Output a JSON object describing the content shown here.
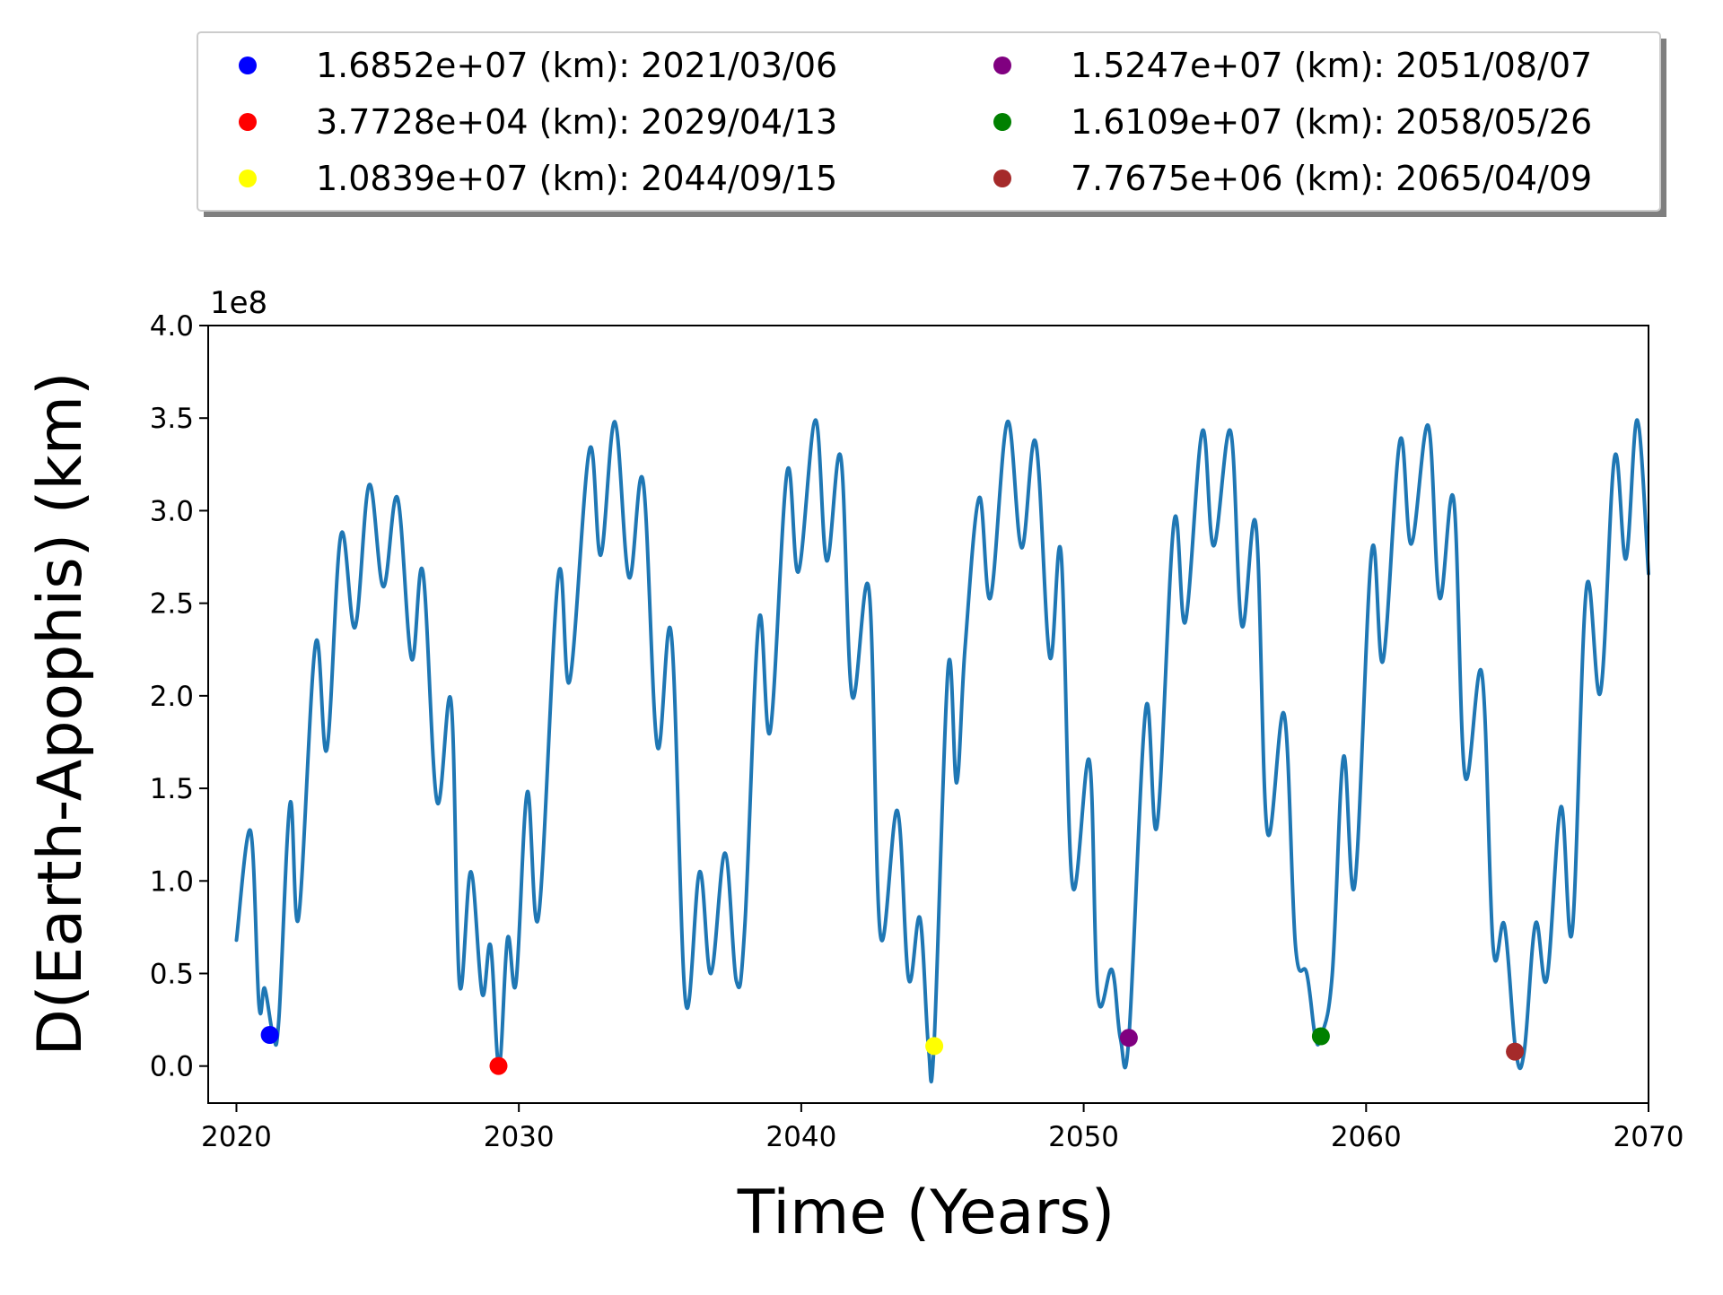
{
  "chart_data": {
    "type": "line",
    "title": "",
    "xlabel": "Time (Years)",
    "ylabel": "D(Earth-Apophis) (km)",
    "y_offset_label": "1e8",
    "xlim": [
      2019,
      2070
    ],
    "ylim": [
      -0.2,
      4.0
    ],
    "y_scale_factor": 100000000,
    "x_ticks": [
      2020,
      2030,
      2040,
      2050,
      2060,
      2070
    ],
    "x_tick_labels": [
      "2020",
      "2030",
      "2040",
      "2050",
      "2060",
      "2070"
    ],
    "y_ticks": [
      0.0,
      0.5,
      1.0,
      1.5,
      2.0,
      2.5,
      3.0,
      3.5,
      4.0
    ],
    "y_tick_labels": [
      "0.0",
      "0.5",
      "1.0",
      "1.5",
      "2.0",
      "2.5",
      "3.0",
      "3.5",
      "4.0"
    ],
    "grid": false,
    "legend_placement": "above-center",
    "line_color": "#1f77b4",
    "series": [
      {
        "x": [
          2020.0,
          2020.5,
          2020.8,
          2021.0,
          2021.3,
          2021.5,
          2021.9,
          2022.2,
          2022.8,
          2023.2,
          2023.7,
          2024.2,
          2024.7,
          2025.2,
          2025.7,
          2026.2,
          2026.6,
          2027.1,
          2027.6,
          2027.9,
          2028.3,
          2028.7,
          2029.0,
          2029.3,
          2029.6,
          2029.9,
          2030.3,
          2030.7,
          2031.4,
          2031.8,
          2032.5,
          2032.9,
          2033.4,
          2033.9,
          2034.4,
          2034.9,
          2035.4,
          2035.9,
          2036.4,
          2036.8,
          2037.3,
          2037.7,
          2038.0,
          2038.5,
          2038.9,
          2039.5,
          2039.9,
          2040.5,
          2040.9,
          2041.4,
          2041.8,
          2042.4,
          2042.8,
          2043.4,
          2043.8,
          2044.2,
          2044.5,
          2044.7,
          2045.2,
          2045.5,
          2045.8,
          2046.3,
          2046.7,
          2047.3,
          2047.8,
          2048.3,
          2048.8,
          2049.2,
          2049.6,
          2050.2,
          2050.5,
          2051.0,
          2051.3,
          2051.6,
          2052.2,
          2052.6,
          2053.2,
          2053.6,
          2054.2,
          2054.6,
          2055.2,
          2055.6,
          2056.1,
          2056.5,
          2057.1,
          2057.5,
          2057.9,
          2058.2,
          2058.4,
          2058.8,
          2059.2,
          2059.6,
          2060.2,
          2060.6,
          2061.2,
          2061.6,
          2062.2,
          2062.6,
          2063.1,
          2063.5,
          2064.1,
          2064.5,
          2064.9,
          2065.3,
          2065.6,
          2066.0,
          2066.4,
          2066.9,
          2067.3,
          2067.8,
          2068.3,
          2068.8,
          2069.2,
          2069.6,
          2070.0
        ],
        "y": [
          0.68,
          1.27,
          0.33,
          0.42,
          0.17,
          0.25,
          1.42,
          0.8,
          2.28,
          1.71,
          2.87,
          2.37,
          3.14,
          2.59,
          3.07,
          2.2,
          2.67,
          1.43,
          1.97,
          0.44,
          1.05,
          0.39,
          0.65,
          0.0,
          0.69,
          0.45,
          1.48,
          0.81,
          2.65,
          2.08,
          3.33,
          2.76,
          3.48,
          2.64,
          3.16,
          1.73,
          2.33,
          0.35,
          1.05,
          0.5,
          1.15,
          0.46,
          0.75,
          2.41,
          1.81,
          3.21,
          2.67,
          3.49,
          2.73,
          3.29,
          2.0,
          2.57,
          0.71,
          1.38,
          0.47,
          0.8,
          0.11,
          0.11,
          2.15,
          1.53,
          2.26,
          3.07,
          2.53,
          3.48,
          2.8,
          3.37,
          2.21,
          2.77,
          0.98,
          1.65,
          0.38,
          0.52,
          0.15,
          0.15,
          1.93,
          1.3,
          2.94,
          2.4,
          3.43,
          2.81,
          3.43,
          2.38,
          2.92,
          1.27,
          1.9,
          0.65,
          0.5,
          0.16,
          0.16,
          0.49,
          1.67,
          0.98,
          2.78,
          2.19,
          3.38,
          2.82,
          3.46,
          2.53,
          3.06,
          1.57,
          2.12,
          0.64,
          0.76,
          0.08,
          0.08,
          0.77,
          0.47,
          1.4,
          0.73,
          2.58,
          2.02,
          3.29,
          2.74,
          3.49,
          2.66
        ]
      }
    ],
    "markers": [
      {
        "label": "1.6852e+07 (km): 2021/03/06",
        "x": 2021.18,
        "y": 0.168,
        "color": "#0000ff"
      },
      {
        "label": "3.7728e+04 (km): 2029/04/13",
        "x": 2029.28,
        "y": 0.0004,
        "color": "#ff0000"
      },
      {
        "label": "1.0839e+07 (km): 2044/09/15",
        "x": 2044.71,
        "y": 0.108,
        "color": "#ffff00"
      },
      {
        "label": "1.5247e+07 (km): 2051/08/07",
        "x": 2051.6,
        "y": 0.152,
        "color": "#800080"
      },
      {
        "label": "1.6109e+07 (km): 2058/05/26",
        "x": 2058.4,
        "y": 0.161,
        "color": "#008000"
      },
      {
        "label": "7.7675e+06 (km): 2065/04/09",
        "x": 2065.27,
        "y": 0.078,
        "color": "#a52a2a"
      }
    ]
  }
}
